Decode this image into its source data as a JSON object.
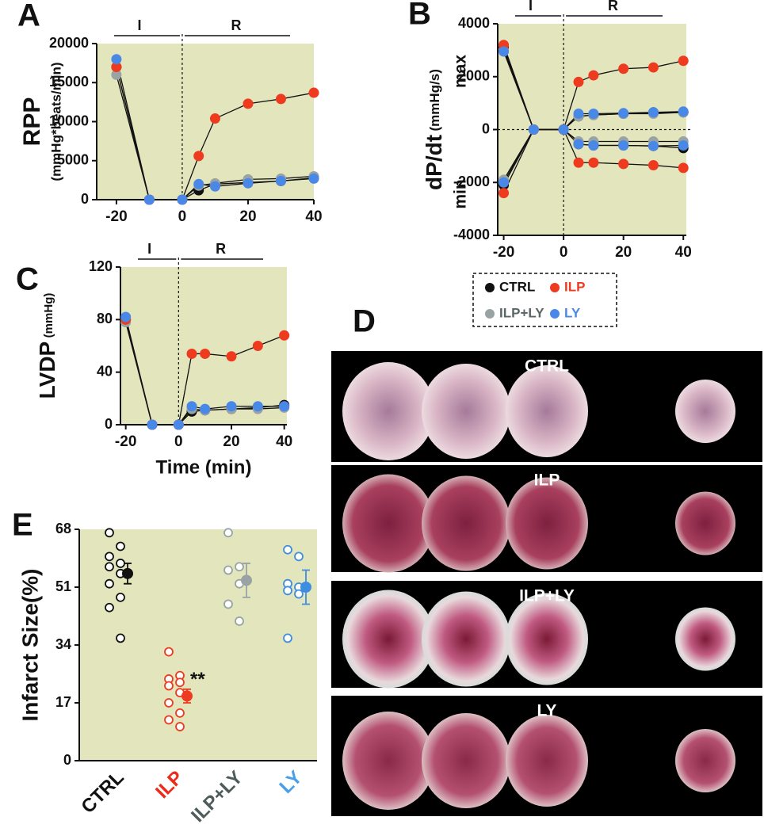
{
  "chart_data": [
    {
      "type": "line",
      "panel": "A",
      "phase_labels": [
        "I",
        "R"
      ],
      "ylabel": "RPP",
      "ylabel_unit": "(mmHg*beats/min)",
      "x": [
        -20,
        -10,
        0,
        5,
        10,
        20,
        30,
        40
      ],
      "xlim": [
        -26,
        40
      ],
      "xticks": [
        -20,
        0,
        20,
        40
      ],
      "ylim": [
        0,
        20000
      ],
      "yticks": [
        0,
        5000,
        10000,
        15000,
        20000
      ],
      "background": "#e3e6bd",
      "series": [
        {
          "name": "CTRL",
          "color": "#111111",
          "values": [
            17000,
            0,
            0,
            1200,
            2000,
            2200,
            2400,
            2800
          ]
        },
        {
          "name": "ILP",
          "color": "#ee3a1f",
          "values": [
            17000,
            0,
            0,
            5600,
            10400,
            12300,
            12900,
            13700
          ]
        },
        {
          "name": "ILP+LY",
          "color": "#9aa3a3",
          "values": [
            16000,
            0,
            0,
            1800,
            2100,
            2600,
            2700,
            3000
          ]
        },
        {
          "name": "LY",
          "color": "#4a88e8",
          "values": [
            18000,
            0,
            0,
            2000,
            1700,
            2100,
            2400,
            2700
          ]
        }
      ]
    },
    {
      "type": "line",
      "panel": "B",
      "phase_labels": [
        "I",
        "R"
      ],
      "ylabel": "dP/dt",
      "ylabel_unit": "(mmHg/s)",
      "max_label": "max",
      "min_label": "min",
      "x": [
        -20,
        -10,
        0,
        5,
        10,
        20,
        30,
        40
      ],
      "xlim": [
        -22,
        41
      ],
      "xticks": [
        -20,
        0,
        20,
        40
      ],
      "ylim": [
        -4000,
        4000
      ],
      "yticks": [
        -4000,
        -2000,
        0,
        2000,
        4000
      ],
      "background": "#e3e6bd",
      "series": [
        {
          "name": "CTRL",
          "color": "#111111",
          "max": [
            3100,
            0,
            0,
            500,
            550,
            600,
            650,
            650
          ],
          "min": [
            -2100,
            0,
            0,
            -550,
            -600,
            -600,
            -620,
            -700
          ]
        },
        {
          "name": "ILP",
          "color": "#ee3a1f",
          "max": [
            3200,
            0,
            0,
            1800,
            2050,
            2300,
            2350,
            2600
          ],
          "min": [
            -2400,
            0,
            0,
            -1250,
            -1250,
            -1300,
            -1350,
            -1450
          ]
        },
        {
          "name": "ILP+LY",
          "color": "#9aa3a3",
          "max": [
            3000,
            0,
            0,
            500,
            550,
            600,
            600,
            650
          ],
          "min": [
            -1900,
            0,
            0,
            -450,
            -450,
            -450,
            -450,
            -450
          ]
        },
        {
          "name": "LY",
          "color": "#4a88e8",
          "max": [
            2950,
            0,
            0,
            600,
            600,
            620,
            650,
            680
          ],
          "min": [
            -2000,
            0,
            0,
            -550,
            -600,
            -600,
            -620,
            -600
          ]
        }
      ]
    },
    {
      "type": "line",
      "panel": "C",
      "phase_labels": [
        "I",
        "R"
      ],
      "ylabel": "LVDP",
      "ylabel_unit": "(mmHg)",
      "xlabel": "Time (min)",
      "x": [
        -20,
        -10,
        0,
        5,
        10,
        20,
        30,
        40
      ],
      "xlim": [
        -22,
        41
      ],
      "xticks": [
        -20,
        0,
        20,
        40
      ],
      "ylim": [
        0,
        120
      ],
      "yticks": [
        0,
        40,
        80,
        120
      ],
      "background": "#e3e6bd",
      "series": [
        {
          "name": "CTRL",
          "color": "#111111",
          "values": [
            80,
            0,
            0,
            10,
            11,
            12,
            13,
            15
          ]
        },
        {
          "name": "ILP",
          "color": "#ee3a1f",
          "values": [
            80,
            0,
            0,
            54,
            54,
            52,
            60,
            68
          ]
        },
        {
          "name": "ILP+LY",
          "color": "#9aa3a3",
          "values": [
            78,
            0,
            0,
            12,
            11,
            12,
            12,
            13
          ]
        },
        {
          "name": "LY",
          "color": "#4a88e8",
          "values": [
            82,
            0,
            0,
            14,
            12,
            14,
            14,
            14
          ]
        }
      ]
    },
    {
      "type": "dot",
      "panel": "E",
      "ylabel": "Infarct Size(%)",
      "annotation": "**",
      "categories": [
        "CTRL",
        "ILP",
        "ILP+LY",
        "LY"
      ],
      "ylim": [
        0,
        68
      ],
      "yticks": [
        0,
        17,
        34,
        51,
        68
      ],
      "background": "#e3e6bd",
      "series": [
        {
          "name": "CTRL",
          "color": "#111111",
          "label_color": "#111111",
          "points": [
            67,
            63,
            60,
            58,
            57,
            55,
            52,
            48,
            45,
            36
          ],
          "mean": 55,
          "sem": 3
        },
        {
          "name": "ILP",
          "color": "#ee3a1f",
          "label_color": "#ee2a1a",
          "points": [
            32,
            25,
            24,
            23,
            22,
            20,
            17,
            14,
            12,
            10
          ],
          "mean": 19,
          "sem": 2
        },
        {
          "name": "ILP+LY",
          "color": "#9aa3a3",
          "label_color": "#4f5c5c",
          "points": [
            67,
            57,
            56,
            52,
            46,
            41
          ],
          "mean": 53,
          "sem": 5
        },
        {
          "name": "LY",
          "color": "#3d8de0",
          "label_color": "#4aa0e8",
          "points": [
            62,
            60,
            52,
            51,
            50,
            49,
            36
          ],
          "mean": 51,
          "sem": 5
        }
      ]
    }
  ],
  "photo_panel": {
    "panel": "D",
    "labels": [
      "CTRL",
      "ILP",
      "ILP+LY",
      "LY"
    ]
  }
}
